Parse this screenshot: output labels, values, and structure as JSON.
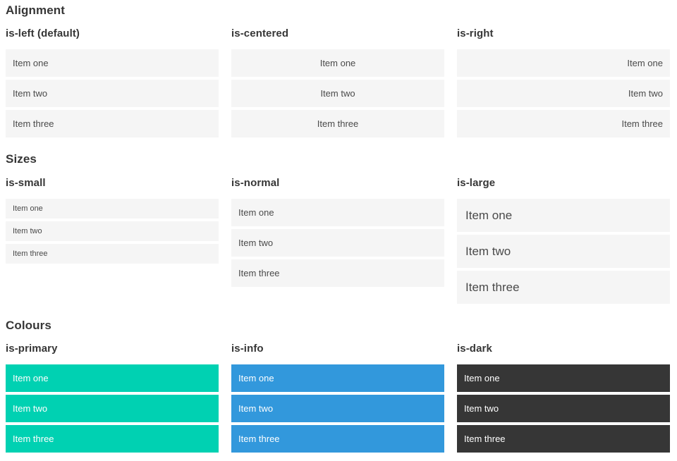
{
  "colors": {
    "primary": "#00d1b2",
    "info": "#3298dc",
    "dark": "#363636",
    "item_bg": "#f5f5f5",
    "item_text": "#4a4a4a",
    "heading": "#363636",
    "on_color_text": "#ffffff"
  },
  "sections": [
    {
      "title": "Alignment",
      "variants": [
        {
          "label": "is-left (default)",
          "items": [
            "Item one",
            "Item two",
            "Item three"
          ]
        },
        {
          "label": "is-centered",
          "items": [
            "Item one",
            "Item two",
            "Item three"
          ]
        },
        {
          "label": "is-right",
          "items": [
            "Item one",
            "Item two",
            "Item three"
          ]
        }
      ]
    },
    {
      "title": "Sizes",
      "variants": [
        {
          "label": "is-small",
          "items": [
            "Item one",
            "Item two",
            "Item three"
          ]
        },
        {
          "label": "is-normal",
          "items": [
            "Item one",
            "Item two",
            "Item three"
          ]
        },
        {
          "label": "is-large",
          "items": [
            "Item one",
            "Item two",
            "Item three"
          ]
        }
      ]
    },
    {
      "title": "Colours",
      "variants": [
        {
          "label": "is-primary",
          "items": [
            "Item one",
            "Item two",
            "Item three"
          ]
        },
        {
          "label": "is-info",
          "items": [
            "Item one",
            "Item two",
            "Item three"
          ]
        },
        {
          "label": "is-dark",
          "items": [
            "Item one",
            "Item two",
            "Item three"
          ]
        }
      ]
    }
  ]
}
